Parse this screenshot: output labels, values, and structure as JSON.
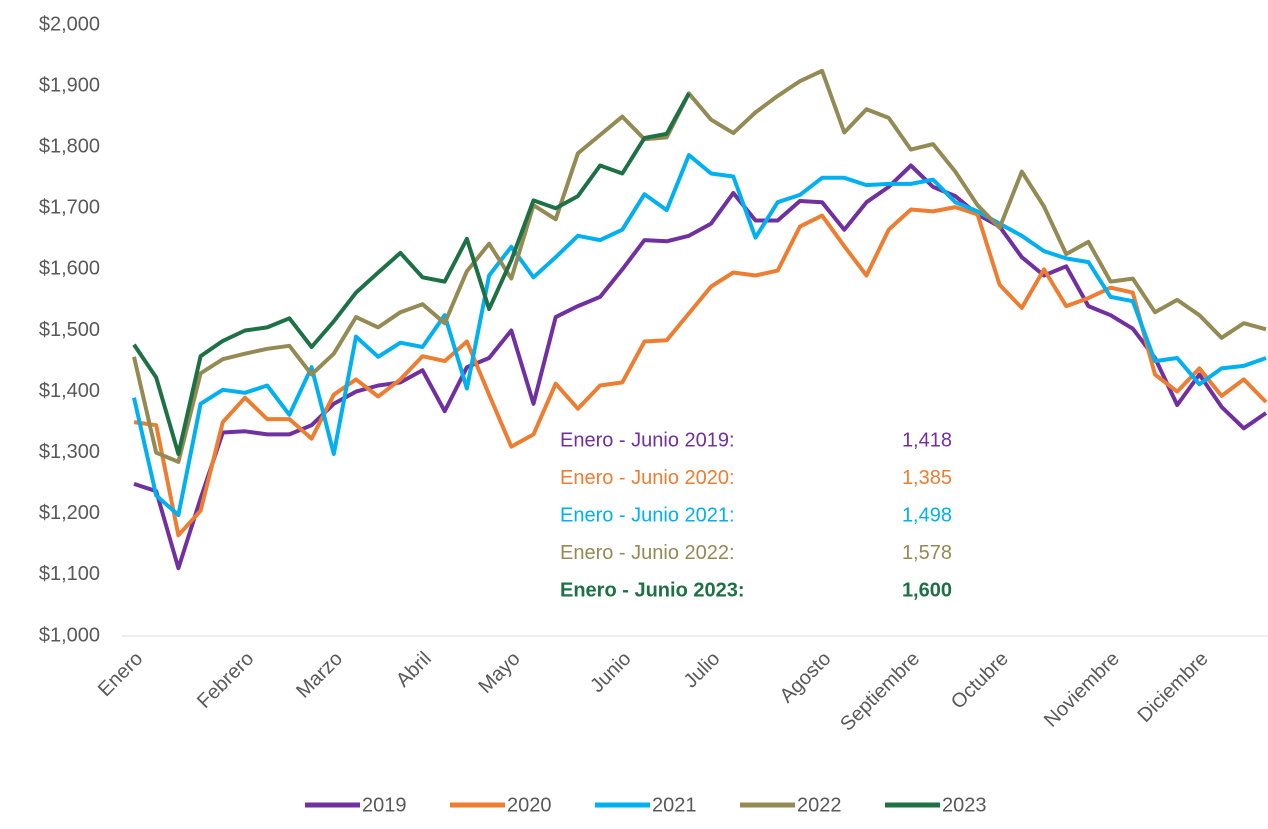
{
  "chart_data": {
    "type": "line",
    "categories": [
      "Enero",
      null,
      null,
      null,
      null,
      "Febrero",
      null,
      null,
      null,
      "Marzo",
      null,
      null,
      null,
      "Abril",
      null,
      null,
      null,
      "Mayo",
      null,
      null,
      null,
      null,
      "Junio",
      null,
      null,
      null,
      "Julio",
      null,
      null,
      null,
      null,
      "Agosto",
      null,
      null,
      null,
      "Septiembre",
      null,
      null,
      null,
      "Octubre",
      null,
      null,
      null,
      null,
      "Noviembre",
      null,
      null,
      null,
      "Diciembre",
      null,
      null,
      null
    ],
    "series": [
      {
        "name": "2019",
        "color": "#7030a0",
        "values": [
          1249,
          1237,
          1111,
          1225,
          1333,
          1335,
          1330,
          1330,
          1345,
          1380,
          1400,
          1410,
          1415,
          1435,
          1368,
          1440,
          1455,
          1500,
          1380,
          1522,
          1540,
          1555,
          1600,
          1648,
          1646,
          1655,
          1675,
          1725,
          1680,
          1680,
          1712,
          1710,
          1665,
          1710,
          1735,
          1770,
          1735,
          1720,
          1690,
          1670,
          1620,
          1590,
          1605,
          1540,
          1525,
          1503,
          1455,
          1378,
          1428,
          1375,
          1340,
          1365
        ]
      },
      {
        "name": "2020",
        "color": "#ed7d31",
        "values": [
          1350,
          1345,
          1165,
          1205,
          1350,
          1390,
          1355,
          1355,
          1323,
          1395,
          1420,
          1392,
          1420,
          1458,
          1450,
          1482,
          1395,
          1310,
          1330,
          1413,
          1372,
          1410,
          1415,
          1482,
          1484,
          1528,
          1572,
          1595,
          1590,
          1598,
          1670,
          1688,
          1638,
          1590,
          1665,
          1698,
          1695,
          1702,
          1690,
          1575,
          1537,
          1600,
          1540,
          1553,
          1570,
          1562,
          1428,
          1400,
          1438,
          1393,
          1420,
          1383
        ]
      },
      {
        "name": "2021",
        "color": "#00b0f0",
        "values": [
          1390,
          1230,
          1198,
          1380,
          1403,
          1398,
          1410,
          1362,
          1440,
          1298,
          1490,
          1457,
          1480,
          1473,
          1525,
          1405,
          1590,
          1637,
          1587,
          1620,
          1655,
          1648,
          1665,
          1723,
          1697,
          1787,
          1757,
          1752,
          1652,
          1710,
          1722,
          1750,
          1750,
          1738,
          1740,
          1740,
          1747,
          1710,
          1695,
          1675,
          1655,
          1630,
          1618,
          1612,
          1555,
          1548,
          1450,
          1455,
          1412,
          1438,
          1442,
          1455
        ]
      },
      {
        "name": "2022",
        "color": "#948a54",
        "values": [
          1457,
          1300,
          1285,
          1430,
          1453,
          1462,
          1470,
          1475,
          1428,
          1462,
          1522,
          1505,
          1530,
          1543,
          1512,
          1597,
          1642,
          1585,
          1705,
          1682,
          1790,
          1820,
          1850,
          1813,
          1816,
          1888,
          1845,
          1823,
          1857,
          1884,
          1908,
          1925,
          1824,
          1862,
          1848,
          1796,
          1805,
          1760,
          1705,
          1668,
          1760,
          1703,
          1625,
          1645,
          1580,
          1585,
          1530,
          1550,
          1525,
          1488,
          1512,
          1502
        ]
      },
      {
        "name": "2023",
        "color": "#1e7145",
        "values": [
          1477,
          1423,
          1298,
          1458,
          1483,
          1500,
          1505,
          1520,
          1473,
          1515,
          1562,
          1595,
          1627,
          1587,
          1580,
          1650,
          1535,
          1615,
          1713,
          1700,
          1720,
          1770,
          1757,
          1815,
          1822,
          1888,
          null,
          null,
          null,
          null,
          null,
          null,
          null,
          null,
          null,
          null,
          null,
          null,
          null,
          null,
          null,
          null,
          null,
          null,
          null,
          null,
          null,
          null,
          null,
          null,
          null,
          null
        ]
      }
    ],
    "ylim": [
      1000,
      2000
    ],
    "yticks": [
      {
        "value": 1000,
        "label": "$1,000"
      },
      {
        "value": 1100,
        "label": "$1,100"
      },
      {
        "value": 1200,
        "label": "$1,200"
      },
      {
        "value": 1300,
        "label": "$1,300"
      },
      {
        "value": 1400,
        "label": "$1,400"
      },
      {
        "value": 1500,
        "label": "$1,500"
      },
      {
        "value": 1600,
        "label": "$1,600"
      },
      {
        "value": 1700,
        "label": "$1,700"
      },
      {
        "value": 1800,
        "label": "$1,800"
      },
      {
        "value": 1900,
        "label": "$1,900"
      },
      {
        "value": 2000,
        "label": "$2,000"
      }
    ],
    "annotations": [
      {
        "label": "Enero - Junio 2019:",
        "value": "1,418",
        "color": "#7030a0",
        "bold": false
      },
      {
        "label": "Enero - Junio 2020:",
        "value": "1,385",
        "color": "#ed7d31",
        "bold": false
      },
      {
        "label": "Enero - Junio 2021:",
        "value": "1,498",
        "color": "#00b0f0",
        "bold": false
      },
      {
        "label": "Enero - Junio 2022:",
        "value": "1,578",
        "color": "#948a54",
        "bold": false
      },
      {
        "label": "Enero - Junio 2023:",
        "value": "1,600",
        "color": "#1e7145",
        "bold": true
      }
    ],
    "legend": "bottom"
  }
}
